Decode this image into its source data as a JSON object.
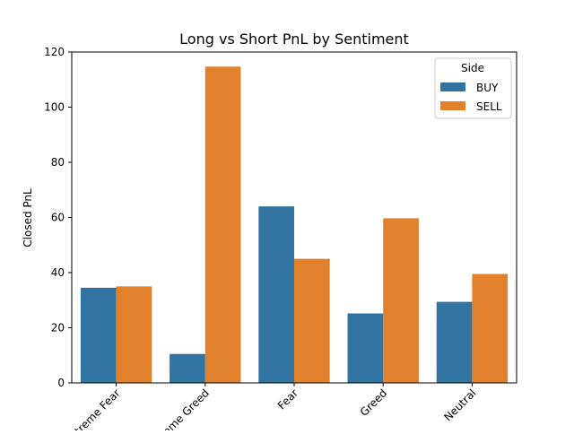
{
  "chart_data": {
    "type": "bar",
    "title": "Long vs Short PnL by Sentiment",
    "xlabel": "",
    "ylabel": "Closed PnL",
    "categories": [
      "Extreme Fear",
      "Extreme Greed",
      "Fear",
      "Greed",
      "Neutral"
    ],
    "series": [
      {
        "name": "BUY",
        "color": "#3274a1",
        "values": [
          34.5,
          10.5,
          64.0,
          25.2,
          29.4
        ]
      },
      {
        "name": "SELL",
        "color": "#e1812c",
        "values": [
          35.0,
          114.7,
          45.0,
          59.7,
          39.5
        ]
      }
    ],
    "ylim": [
      0,
      120
    ],
    "yticks": [
      0,
      20,
      40,
      60,
      80,
      100,
      120
    ],
    "grid": false,
    "legend": {
      "title": "Side",
      "position": "top-right"
    }
  }
}
